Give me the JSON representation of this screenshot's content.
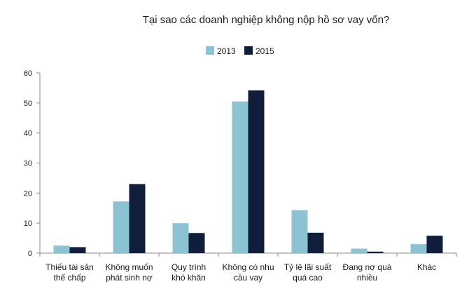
{
  "colors": {
    "series_2013": "#8CC3D2",
    "series_2015": "#101E3C",
    "axis": "#8a8a8a"
  },
  "chart_data": {
    "type": "bar",
    "title": "Tại sao các doanh nghiệp không nộp hồ sơ vay vốn?",
    "xlabel": "",
    "ylabel": "",
    "ylim": [
      0,
      60
    ],
    "yticks": [
      0,
      10,
      20,
      30,
      40,
      50,
      60
    ],
    "grid": false,
    "legend_position": "top-center",
    "categories": [
      [
        "Thiếu tài sản",
        "thế chấp"
      ],
      [
        "Không muốn",
        "phát sinh nợ"
      ],
      [
        "Quy trình",
        "khó khăn"
      ],
      [
        "Không có nhu",
        "cầu vay"
      ],
      [
        "Tỷ lệ lãi suất",
        "quá cao"
      ],
      [
        "Đang nợ quá",
        "nhiều"
      ],
      [
        "Khác"
      ]
    ],
    "series": [
      {
        "name": "2013",
        "values": [
          2.5,
          17.2,
          10.0,
          50.5,
          14.3,
          1.5,
          3.0
        ]
      },
      {
        "name": "2015",
        "values": [
          2.0,
          23.0,
          6.7,
          54.2,
          6.8,
          0.5,
          5.8
        ]
      }
    ]
  }
}
